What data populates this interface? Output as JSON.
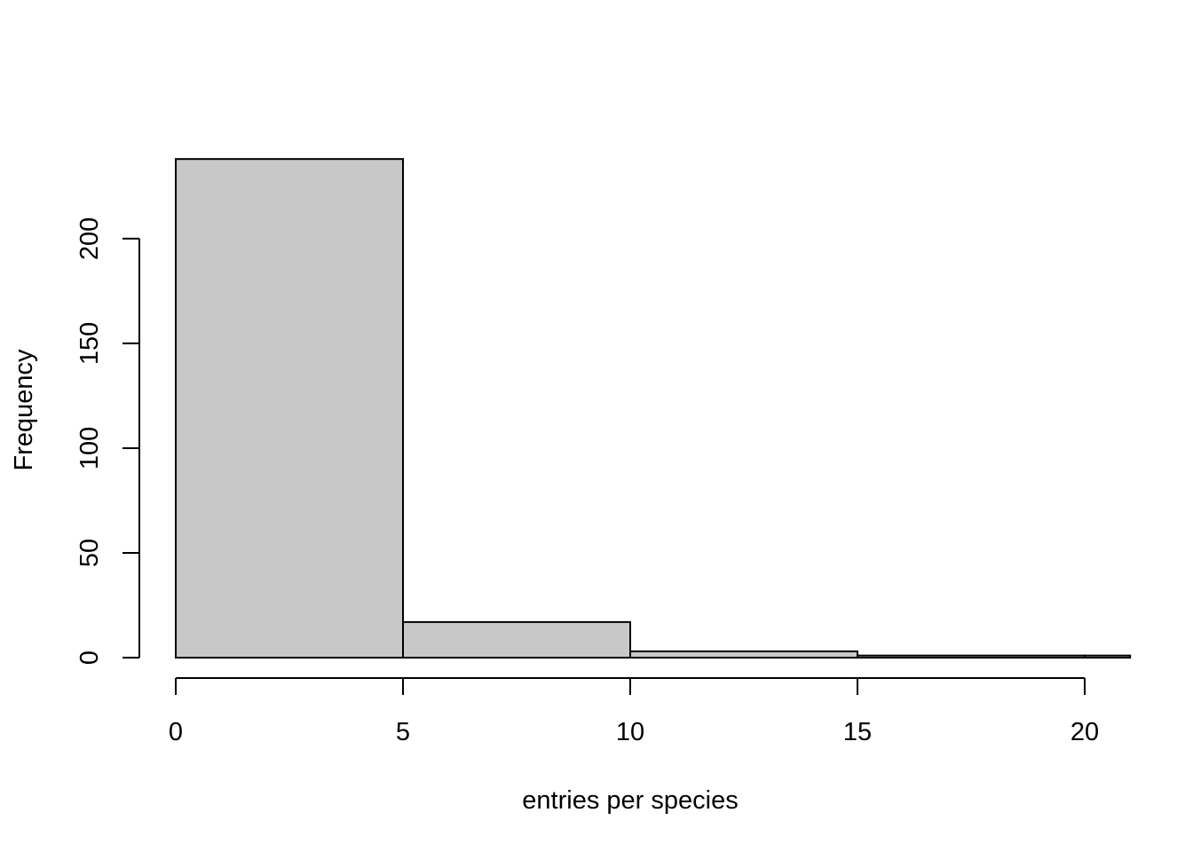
{
  "chart_data": {
    "type": "bar",
    "title": "",
    "xlabel": "entries per species",
    "ylabel": "Frequency",
    "bins": [
      {
        "start": 0,
        "end": 5,
        "count": 238
      },
      {
        "start": 5,
        "end": 10,
        "count": 17
      },
      {
        "start": 10,
        "end": 15,
        "count": 3
      },
      {
        "start": 15,
        "end": 20,
        "count": 1
      },
      {
        "start": 20,
        "end": 21,
        "count": 1
      }
    ],
    "xticks": [
      0,
      5,
      10,
      15,
      20
    ],
    "yticks": [
      0,
      50,
      100,
      150,
      200
    ],
    "xlim": [
      0,
      21
    ],
    "ylim": [
      0,
      238
    ],
    "bar_color": "#c8c8c8",
    "grid": false,
    "legend": "none"
  }
}
